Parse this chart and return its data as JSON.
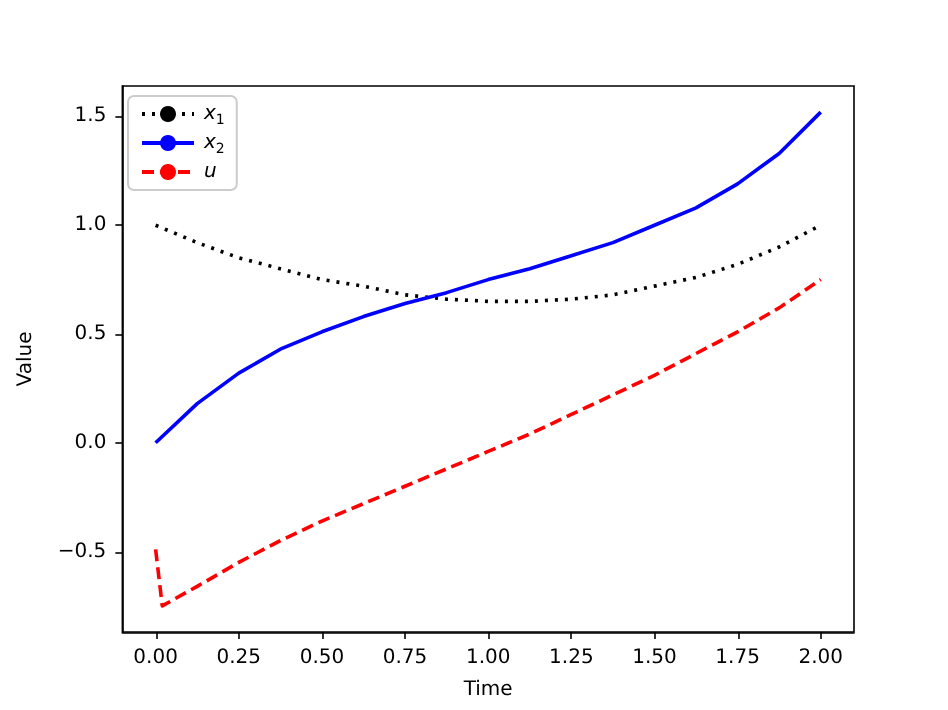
{
  "chart_data": {
    "type": "line",
    "xlabel": "Time",
    "ylabel": "Value",
    "xlim": [
      -0.1,
      2.1
    ],
    "ylim": [
      -0.87,
      1.64
    ],
    "xticks": [
      {
        "value": 0,
        "label": "0.00"
      },
      {
        "value": 0.25,
        "label": "0.25"
      },
      {
        "value": 0.5,
        "label": "0.50"
      },
      {
        "value": 0.75,
        "label": "0.75"
      },
      {
        "value": 1,
        "label": "1.00"
      },
      {
        "value": 1.25,
        "label": "1.25"
      },
      {
        "value": 1.5,
        "label": "1.50"
      },
      {
        "value": 1.75,
        "label": "1.75"
      },
      {
        "value": 2,
        "label": "2.00"
      }
    ],
    "yticks": [
      {
        "value": -0.5,
        "label": "−0.5"
      },
      {
        "value": 0,
        "label": "0.0"
      },
      {
        "value": 0.5,
        "label": "0.5"
      },
      {
        "value": 1,
        "label": "1.0"
      },
      {
        "value": 1.5,
        "label": "1.5"
      }
    ],
    "grid": false,
    "legend": "top left",
    "marker": "none",
    "series": [
      {
        "name": "x$_{1}$",
        "color": "#000000",
        "line_style": "dotted",
        "x": [
          0,
          0.125,
          0.25,
          0.375,
          0.5,
          0.625,
          0.75,
          0.875,
          1,
          1.125,
          1.25,
          1.375,
          1.5,
          1.625,
          1.75,
          1.875,
          2
        ],
        "values": [
          1.0,
          0.92,
          0.85,
          0.8,
          0.75,
          0.72,
          0.68,
          0.66,
          0.65,
          0.65,
          0.66,
          0.68,
          0.72,
          0.76,
          0.82,
          0.9,
          1.0
        ]
      },
      {
        "name": "x$_{2}$",
        "color": "#0000ff",
        "line_style": "solid",
        "x": [
          0,
          0.125,
          0.25,
          0.375,
          0.5,
          0.625,
          0.75,
          0.875,
          1,
          1.125,
          1.25,
          1.375,
          1.5,
          1.625,
          1.75,
          1.875,
          2
        ],
        "values": [
          0,
          0.18,
          0.32,
          0.43,
          0.51,
          0.58,
          0.64,
          0.69,
          0.75,
          0.8,
          0.86,
          0.92,
          1.0,
          1.08,
          1.19,
          1.33,
          1.52
        ]
      },
      {
        "name": "u",
        "color": "#ff0000",
        "line_style": "dashed",
        "x": [
          0,
          0.02,
          0.125,
          0.25,
          0.375,
          0.5,
          0.625,
          0.75,
          0.875,
          1,
          1.125,
          1.25,
          1.375,
          1.5,
          1.625,
          1.75,
          1.875,
          2
        ],
        "values": [
          -0.49,
          -0.75,
          -0.66,
          -0.55,
          -0.45,
          -0.36,
          -0.28,
          -0.2,
          -0.12,
          -0.04,
          0.04,
          0.13,
          0.22,
          0.31,
          0.41,
          0.51,
          0.62,
          0.75
        ]
      }
    ]
  }
}
